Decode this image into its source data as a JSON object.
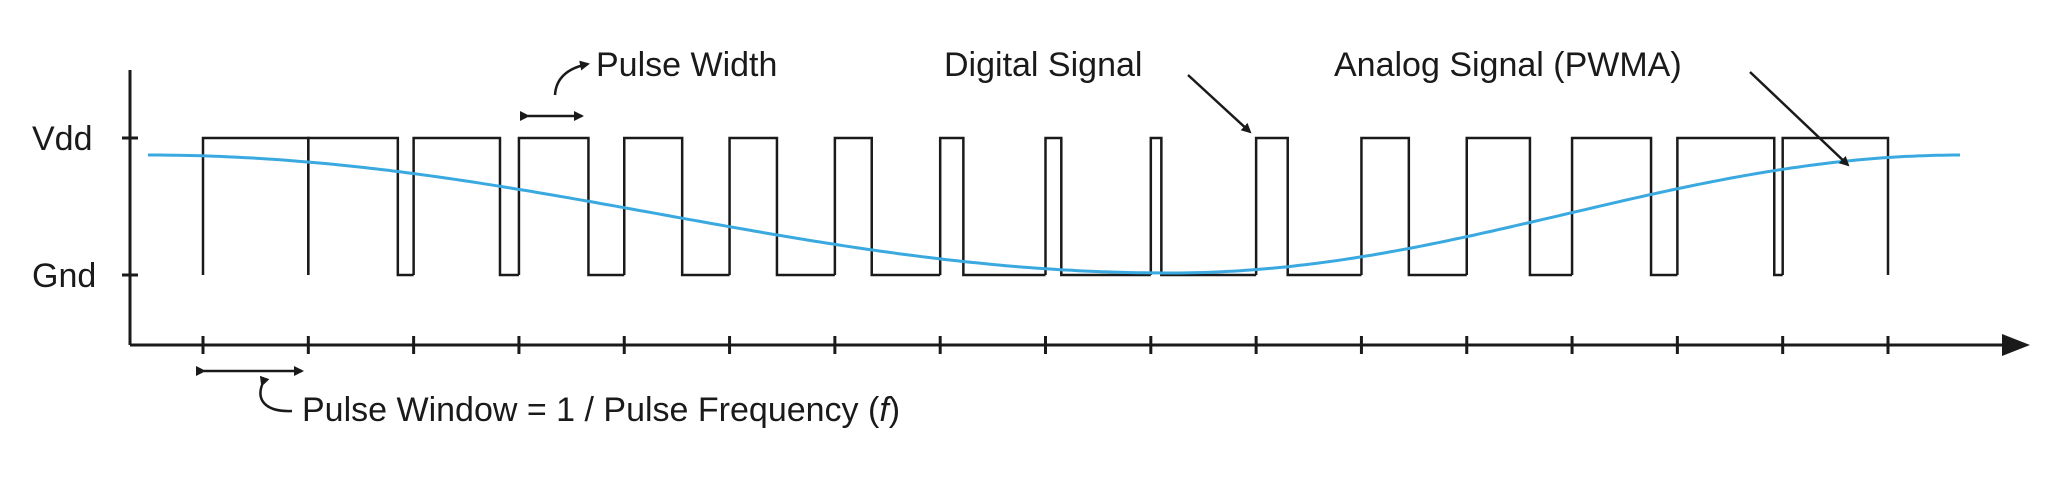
{
  "labels": {
    "vdd": "Vdd",
    "gnd": "Gnd",
    "pulse_width": "Pulse Width",
    "digital_signal": "Digital Signal",
    "analog_signal": "Analog Signal (PWMA)",
    "pulse_window": "Pulse Window  = 1 / Pulse Frequency (",
    "pulse_window_f": "f",
    "pulse_window_close": ")"
  },
  "colors": {
    "analog_signal": "#3aa9e0",
    "digital_signal": "#1a1a1a"
  },
  "signal": {
    "window_count": 16,
    "duty_cycles": [
      1.0,
      0.85,
      0.82,
      0.66,
      0.55,
      0.45,
      0.35,
      0.22,
      0.15,
      0.1,
      0.3,
      0.45,
      0.6,
      0.75,
      0.92,
      1.0
    ],
    "analog_shape": "cosine"
  }
}
